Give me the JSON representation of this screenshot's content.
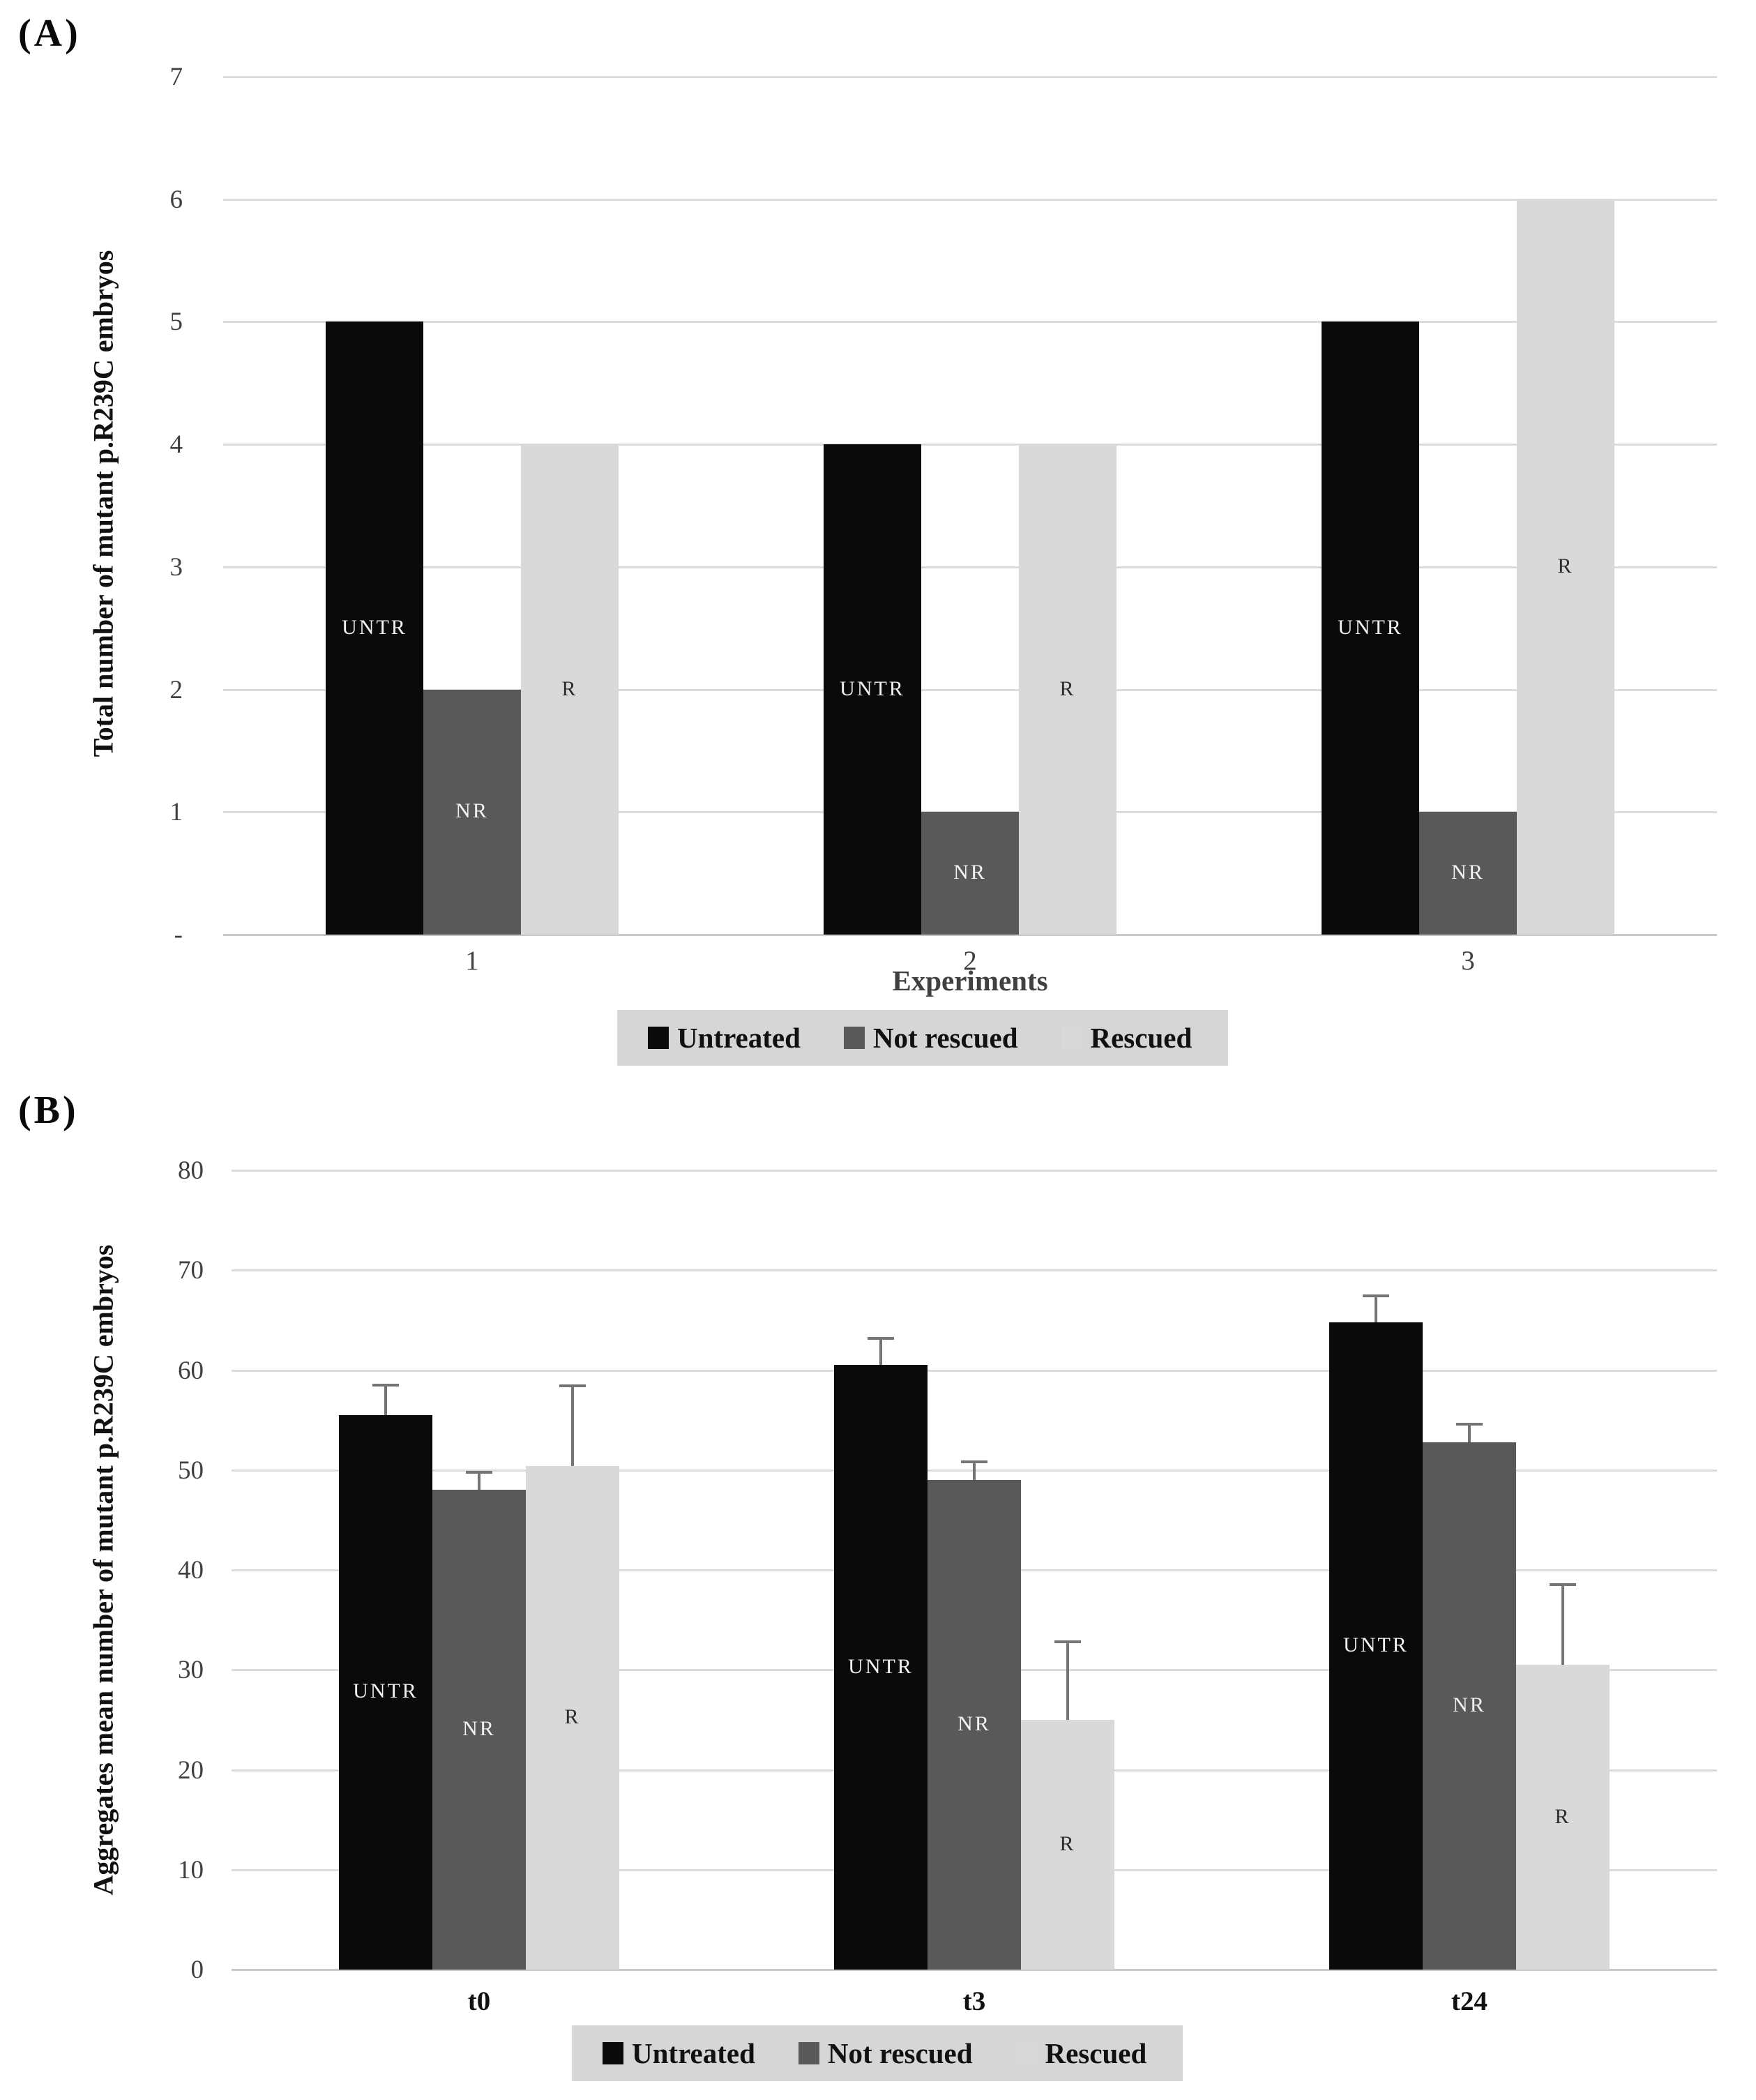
{
  "figure": {
    "background": "#ffffff",
    "panel_a_label": "(A)",
    "panel_b_label": "(B)"
  },
  "colors": {
    "untreated": "#0a0a0a",
    "not_rescued": "#595959",
    "rescued": "#d9d9d9",
    "grid_line": "#dcdcdc",
    "axis_line": "#c9c9c9",
    "error_bar": "#757575",
    "legend_background": "#d6d6d6",
    "tick_text": "#404040",
    "bar_label_light": "#f2f2f2",
    "bar_label_dark": "#2b2b2b"
  },
  "chart_data": [
    {
      "type": "bar",
      "panel_label": "(A)",
      "categories": [
        "1",
        "2",
        "3"
      ],
      "series": [
        {
          "name": "Untreated",
          "bar_label": "UNTR",
          "color": "#0a0a0a",
          "label_color": "#f2f2f2",
          "values": [
            5,
            4,
            5
          ]
        },
        {
          "name": "Not rescued",
          "bar_label": "NR",
          "color": "#595959",
          "label_color": "#f2f2f2",
          "values": [
            2,
            1,
            1
          ]
        },
        {
          "name": "Rescued",
          "bar_label": "R",
          "color": "#d9d9d9",
          "label_color": "#2b2b2b",
          "values": [
            4,
            4,
            6
          ]
        }
      ],
      "xlabel": "Experiments",
      "ylabel": "Total number of mutant p.R239C embryos",
      "ylim": [
        0,
        7
      ],
      "ytick_step": 1,
      "ytick_labels": [
        "-",
        "1",
        "2",
        "3",
        "4",
        "5",
        "6",
        "7"
      ],
      "grid": true,
      "legend": [
        "Untreated",
        "Not rescued",
        "Rescued"
      ],
      "legend_position": "bottom"
    },
    {
      "type": "bar",
      "panel_label": "(B)",
      "categories": [
        "t0",
        "t3",
        "t24"
      ],
      "series": [
        {
          "name": "Untreated",
          "bar_label": "UNTR",
          "color": "#0a0a0a",
          "label_color": "#f2f2f2",
          "values": [
            55.5,
            60.5,
            64.8
          ],
          "errors": [
            3.0,
            2.7,
            2.6
          ]
        },
        {
          "name": "Not rescued",
          "bar_label": "NR",
          "color": "#595959",
          "label_color": "#f2f2f2",
          "values": [
            48.0,
            49.0,
            52.8
          ],
          "errors": [
            1.8,
            1.8,
            1.8
          ]
        },
        {
          "name": "Rescued",
          "bar_label": "R",
          "color": "#d9d9d9",
          "label_color": "#2b2b2b",
          "values": [
            50.4,
            25.0,
            30.5
          ],
          "errors": [
            8.0,
            7.8,
            8.0
          ]
        }
      ],
      "xlabel": "",
      "ylabel": "Aggregates mean number of mutant p.R239C embryos",
      "ylim": [
        0,
        80
      ],
      "ytick_step": 10,
      "ytick_labels": [
        "0",
        "10",
        "20",
        "30",
        "40",
        "50",
        "60",
        "70",
        "80"
      ],
      "grid": true,
      "legend": [
        "Untreated",
        "Not rescued",
        "Rescued"
      ],
      "legend_position": "bottom"
    }
  ]
}
